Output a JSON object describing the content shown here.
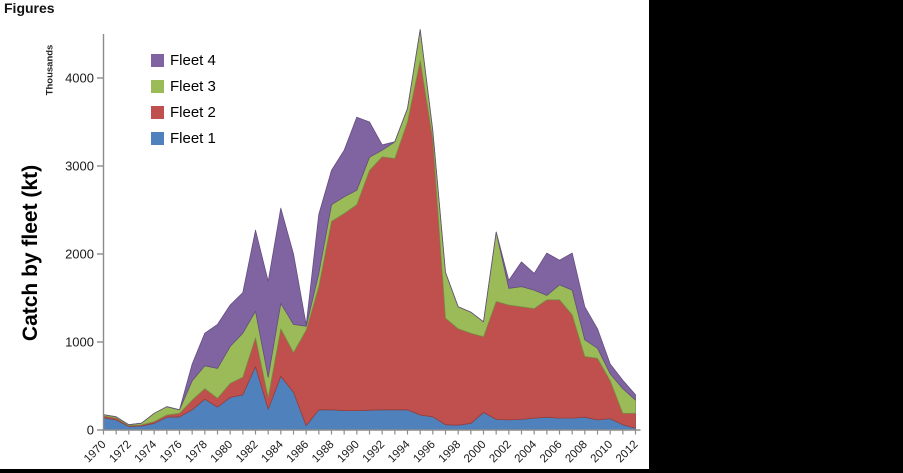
{
  "page": {
    "heading": "Figures",
    "background_color": "#000000",
    "page_color": "#ffffff"
  },
  "chart_data": {
    "type": "area",
    "stacked": true,
    "ylabel": "Catch by fleet (kt)",
    "y_units_label": "Thousands",
    "ylim": [
      0,
      4500
    ],
    "yticks": [
      0,
      1000,
      2000,
      3000,
      4000
    ],
    "x_tick_label_every": 2,
    "grid": false,
    "legend_position": "top-left-inside",
    "axis_color": "#8c8c8c",
    "tick_label_color": "#1a1a1a",
    "x": [
      1970,
      1971,
      1972,
      1973,
      1974,
      1975,
      1976,
      1977,
      1978,
      1979,
      1980,
      1981,
      1982,
      1983,
      1984,
      1985,
      1986,
      1987,
      1988,
      1989,
      1990,
      1991,
      1992,
      1993,
      1994,
      1995,
      1996,
      1997,
      1998,
      1999,
      2000,
      2001,
      2002,
      2003,
      2004,
      2005,
      2006,
      2007,
      2008,
      2009,
      2010,
      2011,
      2012
    ],
    "series": [
      {
        "name": "Fleet 1",
        "color": "#4F81BD",
        "values": [
          140,
          115,
          40,
          46,
          76,
          145,
          150,
          230,
          350,
          260,
          370,
          400,
          720,
          235,
          610,
          430,
          50,
          230,
          230,
          220,
          220,
          225,
          230,
          230,
          230,
          170,
          150,
          60,
          55,
          75,
          200,
          120,
          115,
          120,
          135,
          145,
          135,
          135,
          145,
          115,
          130,
          60,
          20
        ]
      },
      {
        "name": "Fleet 2",
        "color": "#C0504D",
        "values": [
          20,
          20,
          10,
          12,
          19,
          25,
          40,
          110,
          120,
          100,
          160,
          200,
          330,
          135,
          540,
          450,
          1085,
          1400,
          2140,
          2240,
          2340,
          2725,
          2875,
          2855,
          3270,
          4030,
          3150,
          1210,
          1095,
          1025,
          860,
          1340,
          1305,
          1280,
          1245,
          1335,
          1345,
          1175,
          690,
          700,
          430,
          130,
          170
        ]
      },
      {
        "name": "Fleet 3",
        "color": "#9BBB59",
        "values": [
          15,
          15,
          10,
          19,
          95,
          95,
          40,
          220,
          260,
          340,
          420,
          500,
          300,
          230,
          290,
          320,
          45,
          150,
          190,
          190,
          165,
          150,
          75,
          190,
          155,
          350,
          100,
          520,
          250,
          240,
          170,
          790,
          190,
          230,
          210,
          50,
          170,
          280,
          190,
          115,
          80,
          280,
          150
        ]
      },
      {
        "name": "Fleet 4",
        "color": "#8064A2",
        "values": [
          0,
          0,
          0,
          0,
          0,
          0,
          0,
          190,
          370,
          500,
          470,
          460,
          920,
          1090,
          1080,
          800,
          15,
          670,
          390,
          530,
          830,
          400,
          60,
          0,
          0,
          0,
          0,
          0,
          0,
          0,
          0,
          0,
          90,
          280,
          190,
          480,
          280,
          420,
          375,
          220,
          110,
          95,
          60
        ]
      }
    ]
  }
}
